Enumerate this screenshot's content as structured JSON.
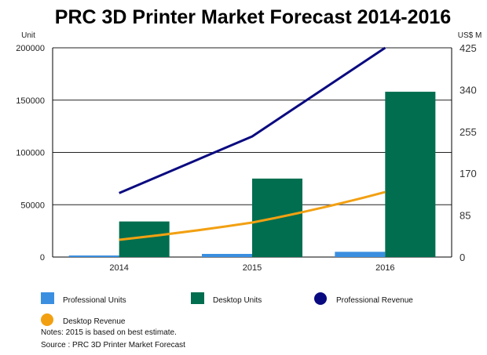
{
  "chart_data": {
    "type": "bar",
    "title": "PRC 3D Printer Market Forecast 2014-2016",
    "categories": [
      "2014",
      "2015",
      "2016"
    ],
    "left_axis": {
      "unit": "Unit",
      "ylim": [
        0,
        200000
      ],
      "ticks": [
        "0",
        "50000",
        "100000",
        "150000",
        "200000"
      ]
    },
    "right_axis": {
      "unit": "US$ M",
      "ylim": [
        0,
        425
      ],
      "ticks": [
        "0",
        "85",
        "170",
        "255",
        "340",
        "425"
      ]
    },
    "series": [
      {
        "name": "Professional Units",
        "kind": "bar",
        "axis": "left",
        "color": "#3b8fe0",
        "values": [
          1500,
          3000,
          5000
        ]
      },
      {
        "name": "Desktop Units",
        "kind": "bar",
        "axis": "left",
        "color": "#006e4f",
        "values": [
          34000,
          75000,
          158000
        ]
      },
      {
        "name": "Professional Revenue",
        "kind": "line",
        "axis": "right",
        "color": "#0a0a80",
        "values": [
          130,
          245,
          425
        ]
      },
      {
        "name": "Desktop Revenue",
        "kind": "line",
        "axis": "right",
        "color": "#f2a012",
        "values": [
          35,
          70,
          132
        ]
      }
    ],
    "grid": "horizontal",
    "legend_position": "bottom",
    "notes": "Notes: 2015 is based on best estimate.",
    "source": "Source : PRC 3D Printer Market Forecast"
  }
}
